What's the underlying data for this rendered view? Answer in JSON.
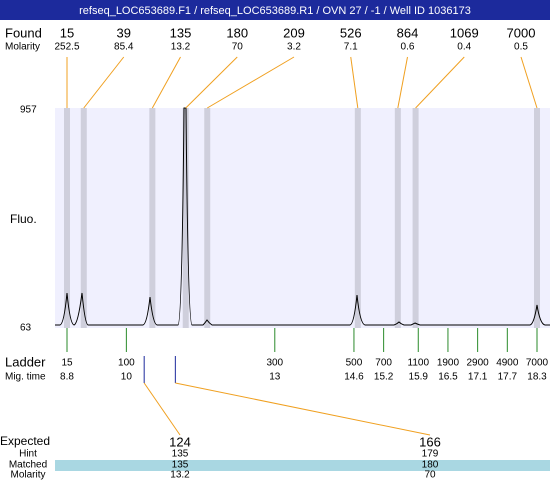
{
  "chart_data": {
    "type": "electropherogram",
    "title": "refseq_LOC653689.F1 / refseq_LOC653689.R1 / OVN 27 / -1 / Well ID 1036173",
    "found_label": "Found",
    "found": [
      15,
      39,
      135,
      180,
      209,
      526,
      864,
      1069,
      7000
    ],
    "molarity_label": "Molarity",
    "molarity": [
      252.5,
      85.4,
      13.2,
      70,
      3.2,
      7.1,
      0.6,
      0.4,
      0.5
    ],
    "y_label": "Fluo.",
    "ylim": [
      63,
      957
    ],
    "yticks": [
      63,
      957
    ],
    "ladder_label": "Ladder",
    "ladder": [
      15,
      100,
      300,
      500,
      700,
      1100,
      1900,
      2900,
      4900,
      7000
    ],
    "mig_time_label": "Mig. time",
    "mig_times": [
      8.8,
      10,
      13,
      14.6,
      15.2,
      15.9,
      16.5,
      17.1,
      17.7,
      18.3
    ],
    "expected_label": "Expected",
    "expected": [
      124,
      166
    ],
    "hint_label": "Hint",
    "hint": [
      135,
      179
    ],
    "matched_label": "Matched",
    "matched": [
      135,
      180
    ],
    "expected_molarity_label": "Molarity",
    "expected_molarity": [
      13.2,
      70
    ]
  }
}
